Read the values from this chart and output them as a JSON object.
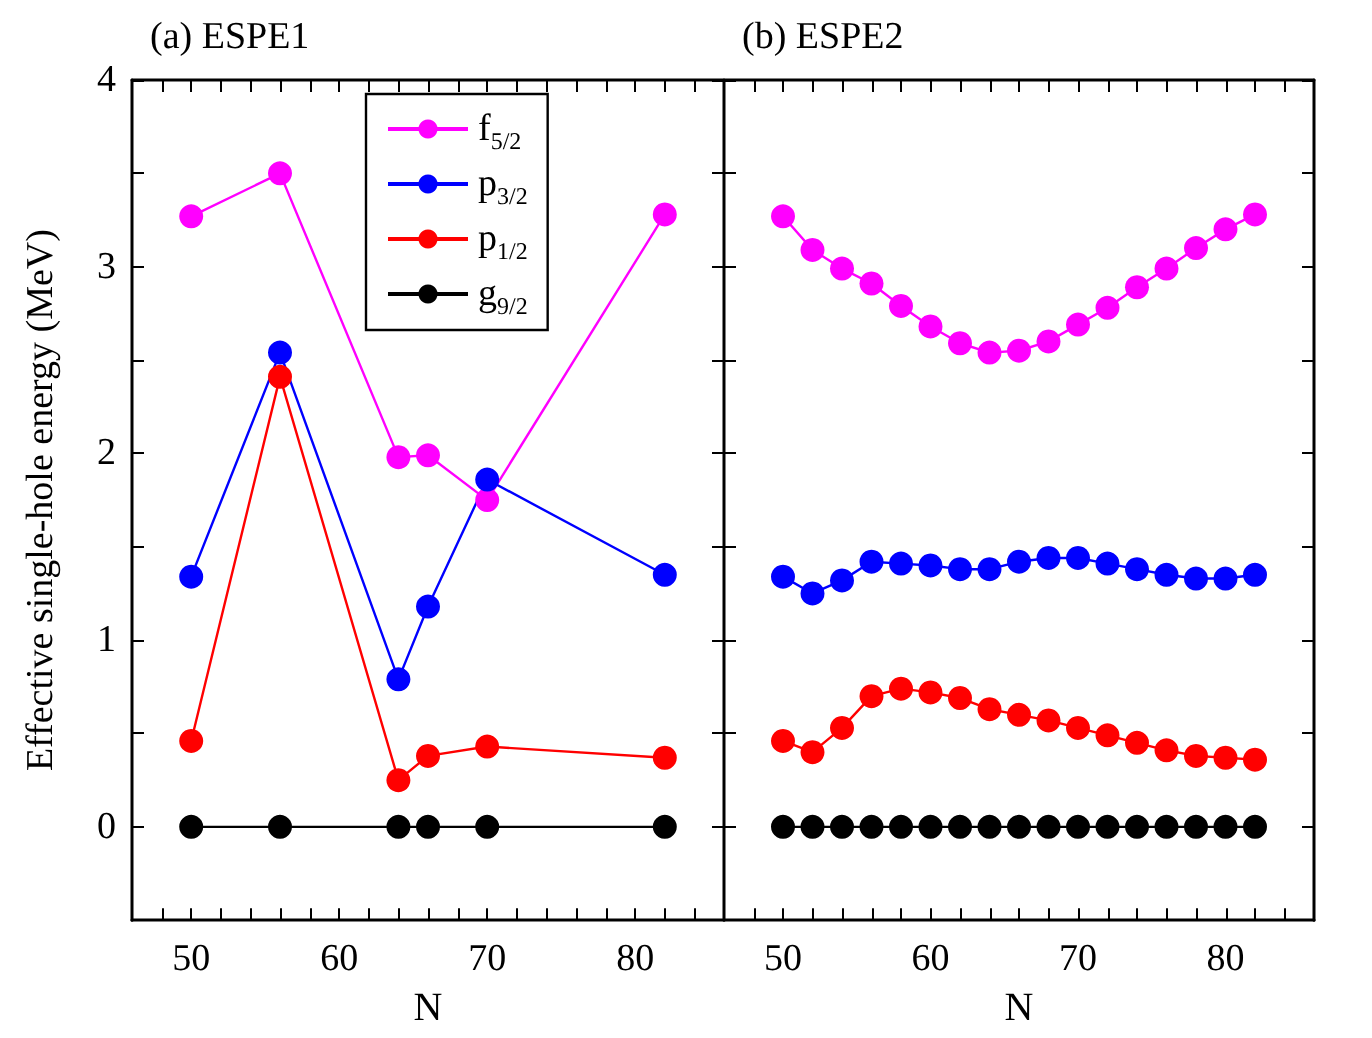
{
  "chart_data": [
    {
      "type": "line",
      "title": "(a) ESPE1",
      "xlabel": "N",
      "ylabel": "Effective single-hole energy (MeV)",
      "x": [
        50,
        56,
        64,
        66,
        70,
        82
      ],
      "series": [
        {
          "name": "f$_{5/2}$",
          "color": "#ff00ff",
          "values": [
            3.27,
            3.5,
            1.98,
            1.99,
            1.75,
            3.28
          ]
        },
        {
          "name": "p$_{3/2}$",
          "color": "#0000ff",
          "values": [
            1.34,
            2.54,
            0.79,
            1.18,
            1.86,
            1.35
          ]
        },
        {
          "name": "p$_{1/2}$",
          "color": "#ff0000",
          "values": [
            0.46,
            2.41,
            0.25,
            0.38,
            0.43,
            0.37
          ]
        },
        {
          "name": "g$_{9/2}$",
          "color": "#000000",
          "values": [
            0,
            0,
            0,
            0,
            0,
            0
          ]
        }
      ],
      "xlim": [
        46,
        86
      ],
      "xticks": [
        {
          "value": 48,
          "label": null
        },
        50,
        {
          "value": 52,
          "label": null
        },
        {
          "value": 54,
          "label": null
        },
        {
          "value": 56,
          "label": null
        },
        {
          "value": 58,
          "label": null
        },
        60,
        {
          "value": 62,
          "label": null
        },
        {
          "value": 64,
          "label": null
        },
        {
          "value": 66,
          "label": null
        },
        {
          "value": 68,
          "label": null
        },
        70,
        {
          "value": 72,
          "label": null
        },
        {
          "value": 74,
          "label": null
        },
        {
          "value": 76,
          "label": null
        },
        {
          "value": 78,
          "label": null
        },
        80,
        {
          "value": 82,
          "label": null
        },
        {
          "value": 84,
          "label": null
        }
      ],
      "ylim": [
        -0.5,
        4
      ],
      "yticks": [
        0,
        {
          "value": 0.5,
          "label": null
        },
        1,
        {
          "value": 1.5,
          "label": null
        },
        2,
        {
          "value": 2.5,
          "label": null
        },
        3,
        {
          "value": 3.5,
          "label": null
        },
        4
      ],
      "grid": false,
      "legend": "top",
      "marker": "circle",
      "line_style": "solid"
    },
    {
      "type": "line",
      "title": "(b) ESPE2",
      "xlabel": "N",
      "x": [
        50,
        52,
        54,
        56,
        58,
        60,
        62,
        64,
        66,
        68,
        70,
        72,
        74,
        76,
        78,
        80,
        82
      ],
      "series": [
        {
          "color": "#ff00ff",
          "values": [
            3.27,
            3.09,
            2.99,
            2.91,
            2.79,
            2.68,
            2.59,
            2.54,
            2.55,
            2.6,
            2.69,
            2.78,
            2.89,
            2.99,
            3.1,
            3.2,
            3.28
          ]
        },
        {
          "color": "#0000ff",
          "values": [
            1.34,
            1.25,
            1.32,
            1.42,
            1.41,
            1.4,
            1.38,
            1.38,
            1.42,
            1.44,
            1.44,
            1.41,
            1.38,
            1.35,
            1.33,
            1.33,
            1.35
          ]
        },
        {
          "color": "#ff0000",
          "values": [
            0.46,
            0.4,
            0.53,
            0.7,
            0.74,
            0.72,
            0.69,
            0.63,
            0.6,
            0.57,
            0.53,
            0.49,
            0.45,
            0.41,
            0.38,
            0.37,
            0.36
          ]
        },
        {
          "color": "#000000",
          "values": [
            0,
            0,
            0,
            0,
            0,
            0,
            0,
            0,
            0,
            0,
            0,
            0,
            0,
            0,
            0,
            0,
            0
          ]
        }
      ],
      "xlim": [
        46,
        86
      ],
      "xticks": [
        {
          "value": 48,
          "label": null
        },
        50,
        {
          "value": 52,
          "label": null
        },
        {
          "value": 54,
          "label": null
        },
        {
          "value": 56,
          "label": null
        },
        {
          "value": 58,
          "label": null
        },
        60,
        {
          "value": 62,
          "label": null
        },
        {
          "value": 64,
          "label": null
        },
        {
          "value": 66,
          "label": null
        },
        {
          "value": 68,
          "label": null
        },
        70,
        {
          "value": 72,
          "label": null
        },
        {
          "value": 74,
          "label": null
        },
        {
          "value": 76,
          "label": null
        },
        {
          "value": 78,
          "label": null
        },
        80,
        {
          "value": 82,
          "label": null
        },
        {
          "value": 84,
          "label": null
        }
      ],
      "ylim": [
        -0.5,
        4
      ],
      "yticks": [
        0,
        {
          "value": 0.5,
          "label": null
        },
        1,
        {
          "value": 1.5,
          "label": null
        },
        2,
        {
          "value": 2.5,
          "label": null
        },
        3,
        {
          "value": 3.5,
          "label": null
        },
        4
      ],
      "tick_labels": "x",
      "grid": false,
      "legend": false,
      "marker": "circle",
      "line_style": "solid"
    }
  ]
}
